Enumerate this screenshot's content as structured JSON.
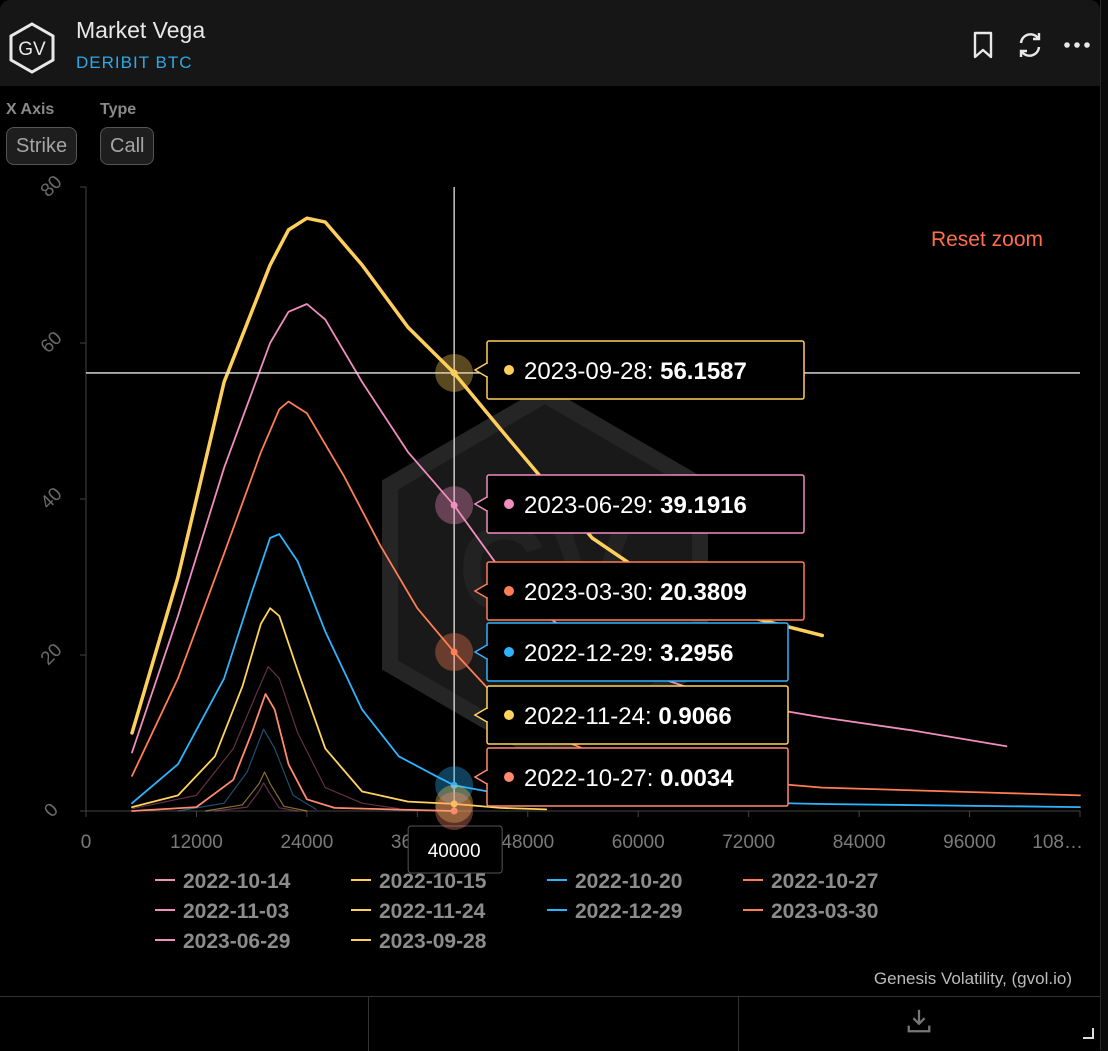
{
  "header": {
    "title": "Market Vega",
    "subtitle": "DERIBIT BTC",
    "logo_text": "GV"
  },
  "controls": {
    "x_axis_label": "X Axis",
    "x_axis_value": "Strike",
    "type_label": "Type",
    "type_value": "Call"
  },
  "reset_zoom_label": "Reset zoom",
  "credit": "Genesis Volatility, (gvol.io)",
  "icons": {
    "bookmark": "bookmark-icon",
    "refresh": "refresh-icon",
    "more": "more-icon",
    "download": "download-icon"
  },
  "chart_data": {
    "type": "line",
    "xlabel": "",
    "ylabel": "",
    "xlim": [
      0,
      108000
    ],
    "ylim": [
      0,
      80
    ],
    "x_ticks": [
      "0",
      "12000",
      "24000",
      "36000",
      "48000",
      "60000",
      "72000",
      "84000",
      "96000",
      "108…"
    ],
    "y_ticks": [
      "0",
      "20",
      "40",
      "60",
      "80"
    ],
    "crosshair": {
      "x": 40000,
      "y": 56.1587,
      "x_label": "40000"
    },
    "legend_position": "bottom",
    "grid": false,
    "series": [
      {
        "name": "2023-09-28",
        "color": "#ffcf5c",
        "width": 3.5,
        "points": [
          [
            5000,
            10
          ],
          [
            10000,
            30
          ],
          [
            15000,
            55
          ],
          [
            20000,
            70
          ],
          [
            22000,
            74.5
          ],
          [
            24000,
            76
          ],
          [
            26000,
            75.5
          ],
          [
            30000,
            70
          ],
          [
            35000,
            62
          ],
          [
            38000,
            58.5
          ],
          [
            40000,
            56.1587
          ],
          [
            45000,
            49
          ],
          [
            50000,
            42
          ],
          [
            55000,
            35
          ],
          [
            60000,
            31
          ],
          [
            65000,
            28
          ],
          [
            70000,
            25.5
          ],
          [
            80000,
            22.5
          ]
        ]
      },
      {
        "name": "2023-06-29",
        "color": "#f08ec0",
        "width": 1.8,
        "points": [
          [
            5000,
            7.5
          ],
          [
            10000,
            25
          ],
          [
            15000,
            44
          ],
          [
            20000,
            60
          ],
          [
            22000,
            64
          ],
          [
            24000,
            65
          ],
          [
            26000,
            63
          ],
          [
            30000,
            55
          ],
          [
            35000,
            46
          ],
          [
            40000,
            39.1916
          ],
          [
            45000,
            31
          ],
          [
            50000,
            25
          ],
          [
            55000,
            21
          ],
          [
            60000,
            18
          ],
          [
            70000,
            14
          ],
          [
            80000,
            12
          ],
          [
            90000,
            10.3
          ],
          [
            100000,
            8.3
          ]
        ]
      },
      {
        "name": "2023-03-30",
        "color": "#ff7e54",
        "width": 1.8,
        "points": [
          [
            5000,
            4.5
          ],
          [
            10000,
            17
          ],
          [
            15000,
            33
          ],
          [
            19000,
            46
          ],
          [
            21000,
            51.5
          ],
          [
            22000,
            52.5
          ],
          [
            24000,
            51
          ],
          [
            28000,
            43
          ],
          [
            32000,
            34
          ],
          [
            36000,
            26
          ],
          [
            40000,
            20.3809
          ],
          [
            45000,
            14
          ],
          [
            50000,
            10
          ],
          [
            55000,
            7.5
          ],
          [
            60000,
            6
          ],
          [
            70000,
            4
          ],
          [
            80000,
            3
          ],
          [
            100000,
            2.3
          ],
          [
            108000,
            2
          ]
        ]
      },
      {
        "name": "2022-12-29",
        "color": "#2eb4ff",
        "width": 1.8,
        "points": [
          [
            5000,
            1
          ],
          [
            10000,
            6
          ],
          [
            15000,
            17
          ],
          [
            18000,
            28
          ],
          [
            20000,
            35
          ],
          [
            21000,
            35.5
          ],
          [
            23000,
            32
          ],
          [
            26000,
            23
          ],
          [
            30000,
            13
          ],
          [
            34000,
            7
          ],
          [
            38000,
            4.5
          ],
          [
            40000,
            3.2956
          ],
          [
            45000,
            2.2
          ],
          [
            50000,
            1.8
          ],
          [
            60000,
            1.4
          ],
          [
            80000,
            0.9
          ],
          [
            108000,
            0.5
          ]
        ]
      },
      {
        "name": "2022-11-24",
        "color": "#ffd45c",
        "width": 1.8,
        "points": [
          [
            5000,
            0.5
          ],
          [
            10000,
            2
          ],
          [
            14000,
            7
          ],
          [
            17000,
            16
          ],
          [
            19000,
            24
          ],
          [
            20000,
            26
          ],
          [
            21000,
            25
          ],
          [
            23000,
            18
          ],
          [
            26000,
            8
          ],
          [
            30000,
            2.5
          ],
          [
            35000,
            1.2
          ],
          [
            40000,
            0.9066
          ],
          [
            45000,
            0.4
          ],
          [
            50000,
            0.2
          ]
        ]
      },
      {
        "name": "2022-11-03",
        "color": "#e0699f",
        "width": 1.2,
        "opacity": 0.45,
        "points": [
          [
            5000,
            0.3
          ],
          [
            12000,
            2
          ],
          [
            16000,
            8
          ],
          [
            18500,
            15
          ],
          [
            19800,
            18.5
          ],
          [
            21000,
            17
          ],
          [
            23000,
            10
          ],
          [
            26000,
            3
          ],
          [
            30000,
            1
          ],
          [
            34000,
            0.3
          ]
        ]
      },
      {
        "name": "2022-10-27",
        "color": "#ff8a6f",
        "width": 1.8,
        "points": [
          [
            5000,
            0
          ],
          [
            12000,
            0.5
          ],
          [
            16000,
            4
          ],
          [
            18000,
            10
          ],
          [
            19500,
            15
          ],
          [
            20500,
            13
          ],
          [
            22000,
            6
          ],
          [
            24000,
            1.5
          ],
          [
            27000,
            0.4
          ],
          [
            40000,
            0.0034
          ]
        ]
      },
      {
        "name": "2022-10-20",
        "color": "#3aa0e0",
        "width": 1.2,
        "opacity": 0.5,
        "points": [
          [
            10000,
            0
          ],
          [
            15000,
            1
          ],
          [
            17500,
            5
          ],
          [
            19300,
            10.5
          ],
          [
            20500,
            8
          ],
          [
            22500,
            2
          ],
          [
            25000,
            0.2
          ]
        ]
      },
      {
        "name": "2022-10-15",
        "color": "#e6b84a",
        "width": 1.2,
        "opacity": 0.6,
        "points": [
          [
            13000,
            0
          ],
          [
            17000,
            0.8
          ],
          [
            18800,
            3.5
          ],
          [
            19400,
            5
          ],
          [
            20000,
            3.5
          ],
          [
            21500,
            0.6
          ],
          [
            24000,
            0
          ]
        ]
      },
      {
        "name": "2022-10-14",
        "color": "#d96aa0",
        "width": 1.2,
        "opacity": 0.45,
        "points": [
          [
            14000,
            0
          ],
          [
            17500,
            0.5
          ],
          [
            18800,
            2.5
          ],
          [
            19300,
            3.6
          ],
          [
            19900,
            2.4
          ],
          [
            21000,
            0.4
          ],
          [
            23000,
            0
          ]
        ]
      }
    ],
    "legend": [
      {
        "name": "2022-10-14",
        "color": "#f08ec0"
      },
      {
        "name": "2022-10-15",
        "color": "#ffcf5c"
      },
      {
        "name": "2022-10-20",
        "color": "#2eb4ff"
      },
      {
        "name": "2022-10-27",
        "color": "#ff7e54"
      },
      {
        "name": "2022-11-03",
        "color": "#f08ec0"
      },
      {
        "name": "2022-11-24",
        "color": "#ffcf5c"
      },
      {
        "name": "2022-12-29",
        "color": "#2eb4ff"
      },
      {
        "name": "2023-03-30",
        "color": "#ff7e54"
      },
      {
        "name": "2023-06-29",
        "color": "#f08ec0"
      },
      {
        "name": "2023-09-28",
        "color": "#ffcf5c"
      }
    ],
    "tooltips": [
      {
        "series": "2023-09-28",
        "date": "2023-09-28",
        "value": "56.1587",
        "color": "#ffcf5c",
        "y": 56.1587
      },
      {
        "series": "2023-06-29",
        "date": "2023-06-29",
        "value": "39.1916",
        "color": "#f08ec0",
        "y": 39.1916
      },
      {
        "series": "2023-03-30",
        "date": "2023-03-30",
        "value": "20.3809",
        "color": "#ff7e54",
        "y": 20.3809
      },
      {
        "series": "2022-12-29",
        "date": "2022-12-29",
        "value": "3.2956",
        "color": "#2eb4ff",
        "y": 3.2956
      },
      {
        "series": "2022-11-24",
        "date": "2022-11-24",
        "value": "0.9066",
        "color": "#ffd45c",
        "y": 0.9066
      },
      {
        "series": "2022-10-27",
        "date": "2022-10-27",
        "value": "0.0034",
        "color": "#ff8a6f",
        "y": 0.0034
      }
    ]
  }
}
